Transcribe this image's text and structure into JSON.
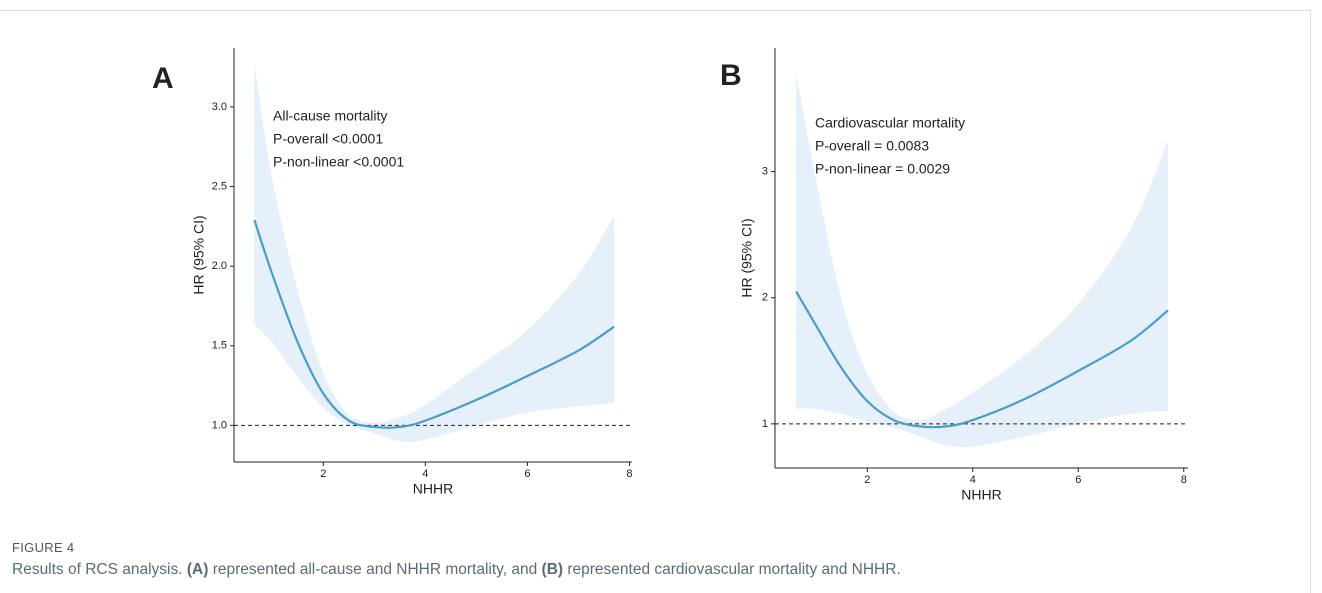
{
  "chart_data": [
    {
      "type": "line",
      "panel": "A",
      "xlabel": "NHHR",
      "ylabel": "HR (95% CI)",
      "annotations": [
        "All-cause mortality",
        "P-overall <0.0001",
        "P-non-linear <0.0001"
      ],
      "x": [
        0.65,
        1.0,
        1.5,
        2.0,
        2.5,
        3.0,
        3.5,
        4.0,
        5.0,
        6.0,
        7.0,
        7.7
      ],
      "series": [
        {
          "color": "#4a9cc9",
          "band_color": "#e6f0fb",
          "values": [
            2.29,
            1.95,
            1.52,
            1.2,
            1.03,
            0.99,
            0.99,
            1.03,
            1.16,
            1.31,
            1.47,
            1.62
          ],
          "lower": [
            1.63,
            1.52,
            1.3,
            1.11,
            1.0,
            0.95,
            0.9,
            0.91,
            1.0,
            1.08,
            1.12,
            1.14
          ],
          "upper": [
            3.27,
            2.55,
            1.85,
            1.33,
            1.07,
            1.02,
            1.05,
            1.13,
            1.36,
            1.6,
            1.95,
            2.32
          ]
        }
      ],
      "hline": 1,
      "xlim": [
        0.25,
        8.05
      ],
      "xticks": [
        2,
        4,
        6,
        8
      ],
      "ylim": [
        0.77,
        3.37
      ],
      "yticks": [
        {
          "value": 1,
          "label": "1.0"
        },
        1.5,
        {
          "value": 2,
          "label": "2.0"
        },
        2.5,
        {
          "value": 3,
          "label": "3.0"
        }
      ]
    },
    {
      "type": "line",
      "panel": "B",
      "xlabel": "NHHR",
      "ylabel": "HR (95% CI)",
      "annotations": [
        "Cardiovascular mortality",
        "P-overall = 0.0083",
        "P-non-linear = 0.0029"
      ],
      "x": [
        0.65,
        1.0,
        1.5,
        2.0,
        2.5,
        3.0,
        3.5,
        4.0,
        5.0,
        6.0,
        7.0,
        7.7
      ],
      "series": [
        {
          "color": "#4a9cc9",
          "band_color": "#e6f0fb",
          "values": [
            2.05,
            1.8,
            1.45,
            1.18,
            1.03,
            0.98,
            0.98,
            1.03,
            1.2,
            1.42,
            1.66,
            1.9
          ],
          "lower": [
            1.12,
            1.12,
            1.08,
            1.02,
            0.97,
            0.9,
            0.83,
            0.82,
            0.9,
            1.0,
            1.08,
            1.1
          ],
          "upper": [
            3.78,
            3.0,
            2.0,
            1.4,
            1.1,
            1.03,
            1.12,
            1.25,
            1.55,
            1.95,
            2.55,
            3.25
          ]
        }
      ],
      "hline": 1,
      "xlim": [
        0.25,
        8.08
      ],
      "xticks": [
        2,
        4,
        6,
        8
      ],
      "ylim": [
        0.65,
        3.98
      ],
      "yticks": [
        1,
        2,
        3
      ]
    }
  ],
  "figure": {
    "label": "FIGURE 4",
    "caption": [
      "Results of RCS analysis. ",
      "(A)",
      " represented all-cause and NHHR mortality, and ",
      "(B)",
      " represented cardiovascular mortality and NHHR."
    ]
  }
}
